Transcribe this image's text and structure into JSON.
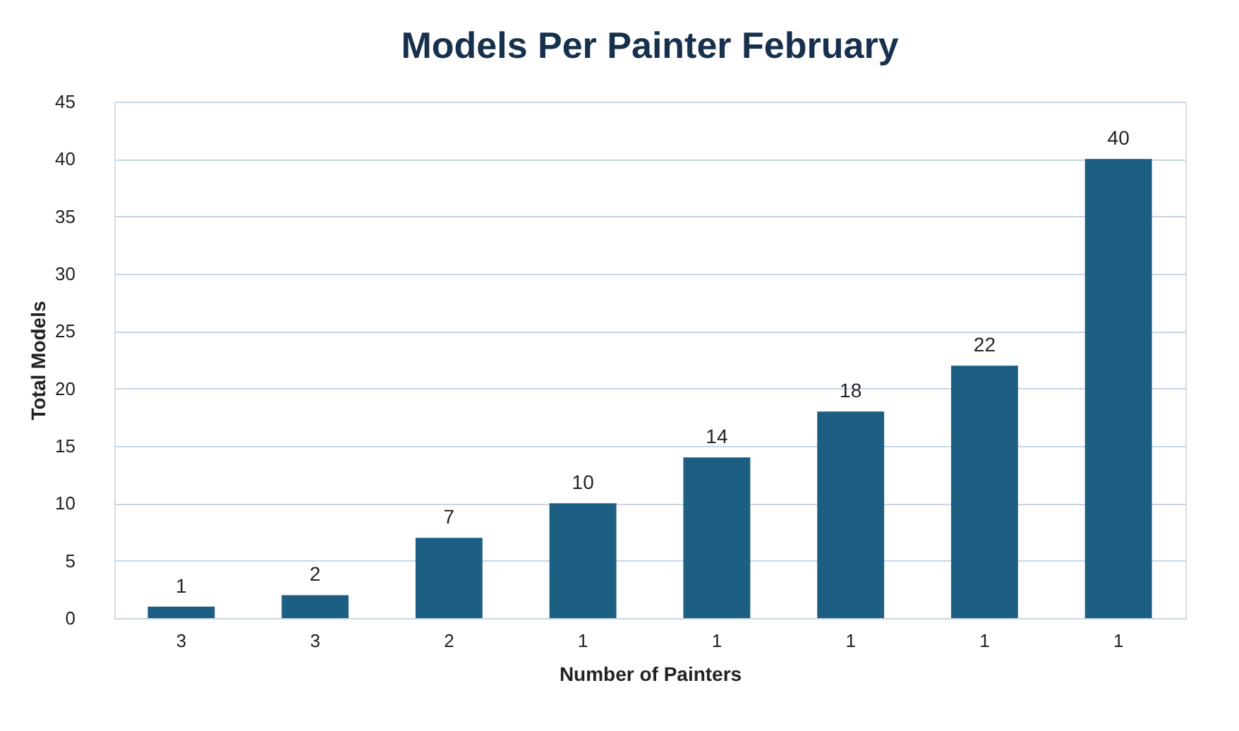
{
  "chart_data": {
    "type": "bar",
    "title": "Models Per Painter February",
    "xlabel": "Number of Painters",
    "ylabel": "Total Models",
    "categories": [
      "3",
      "3",
      "2",
      "1",
      "1",
      "1",
      "1",
      "1"
    ],
    "values": [
      1,
      2,
      7,
      10,
      14,
      18,
      22,
      40
    ],
    "color": "#1d5f83",
    "ylim": [
      0,
      45
    ],
    "yticks": [
      0,
      5,
      10,
      15,
      20,
      25,
      30,
      35,
      40,
      45
    ],
    "grid": "y",
    "data_labels": true
  }
}
